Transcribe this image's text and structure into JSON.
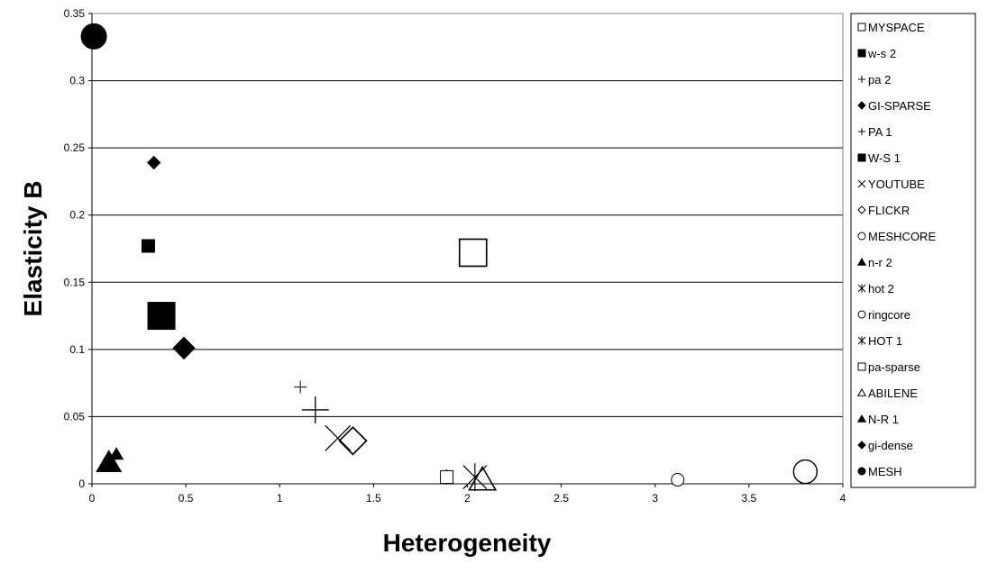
{
  "chart_data": {
    "type": "scatter",
    "title": "",
    "xlabel": "Heterogeneity",
    "ylabel": "Elasticity B",
    "xlim": [
      0,
      4
    ],
    "ylim": [
      0,
      0.35
    ],
    "x_ticks": [
      "0",
      "0.5",
      "1",
      "1.5",
      "2",
      "2.5",
      "3",
      "3.5",
      "4"
    ],
    "y_ticks": [
      "0",
      "0.05",
      "0.1",
      "0.15",
      "0.2",
      "0.25",
      "0.3",
      "0.35"
    ],
    "grid": "horizontal",
    "legend_position": "right",
    "series": [
      {
        "name": "MYSPACE",
        "marker": "square-open",
        "size": "large",
        "x": 2.03,
        "y": 0.172
      },
      {
        "name": "w-s 2",
        "marker": "square-filled",
        "size": "small",
        "x": 0.3,
        "y": 0.177
      },
      {
        "name": "pa 2",
        "marker": "plus",
        "size": "small",
        "x": 1.11,
        "y": 0.072
      },
      {
        "name": "GI-SPARSE",
        "marker": "diamond-filled",
        "size": "large",
        "x": 0.49,
        "y": 0.101
      },
      {
        "name": "PA 1",
        "marker": "plus",
        "size": "large",
        "x": 1.19,
        "y": 0.055
      },
      {
        "name": "W-S 1",
        "marker": "square-filled",
        "size": "large",
        "x": 0.37,
        "y": 0.125
      },
      {
        "name": "YOUTUBE",
        "marker": "x",
        "size": "large",
        "x": 1.31,
        "y": 0.034
      },
      {
        "name": "FLICKR",
        "marker": "diamond-open",
        "size": "large",
        "x": 1.39,
        "y": 0.032
      },
      {
        "name": "MESHCORE",
        "marker": "circle-open",
        "size": "small",
        "x": 3.12,
        "y": 0.003
      },
      {
        "name": "n-r 2",
        "marker": "triangle-filled",
        "size": "small",
        "x": 0.13,
        "y": 0.022
      },
      {
        "name": "hot 2",
        "marker": "asterisk",
        "size": "small",
        "x": 1.89,
        "y": 0.005
      },
      {
        "name": "ringcore",
        "marker": "circle-open",
        "size": "large",
        "x": 3.8,
        "y": 0.009
      },
      {
        "name": "HOT 1",
        "marker": "asterisk",
        "size": "large",
        "x": 2.04,
        "y": 0.005
      },
      {
        "name": "pa-sparse",
        "marker": "square-open",
        "size": "small",
        "x": 1.89,
        "y": 0.005
      },
      {
        "name": "ABILENE",
        "marker": "triangle-open",
        "size": "large",
        "x": 2.08,
        "y": 0.003
      },
      {
        "name": "N-R 1",
        "marker": "triangle-filled",
        "size": "large",
        "x": 0.09,
        "y": 0.016
      },
      {
        "name": "gi-dense",
        "marker": "diamond-filled",
        "size": "small",
        "x": 0.33,
        "y": 0.239
      },
      {
        "name": "MESH",
        "marker": "circle-filled",
        "size": "large",
        "x": 0.01,
        "y": 0.333
      }
    ]
  }
}
